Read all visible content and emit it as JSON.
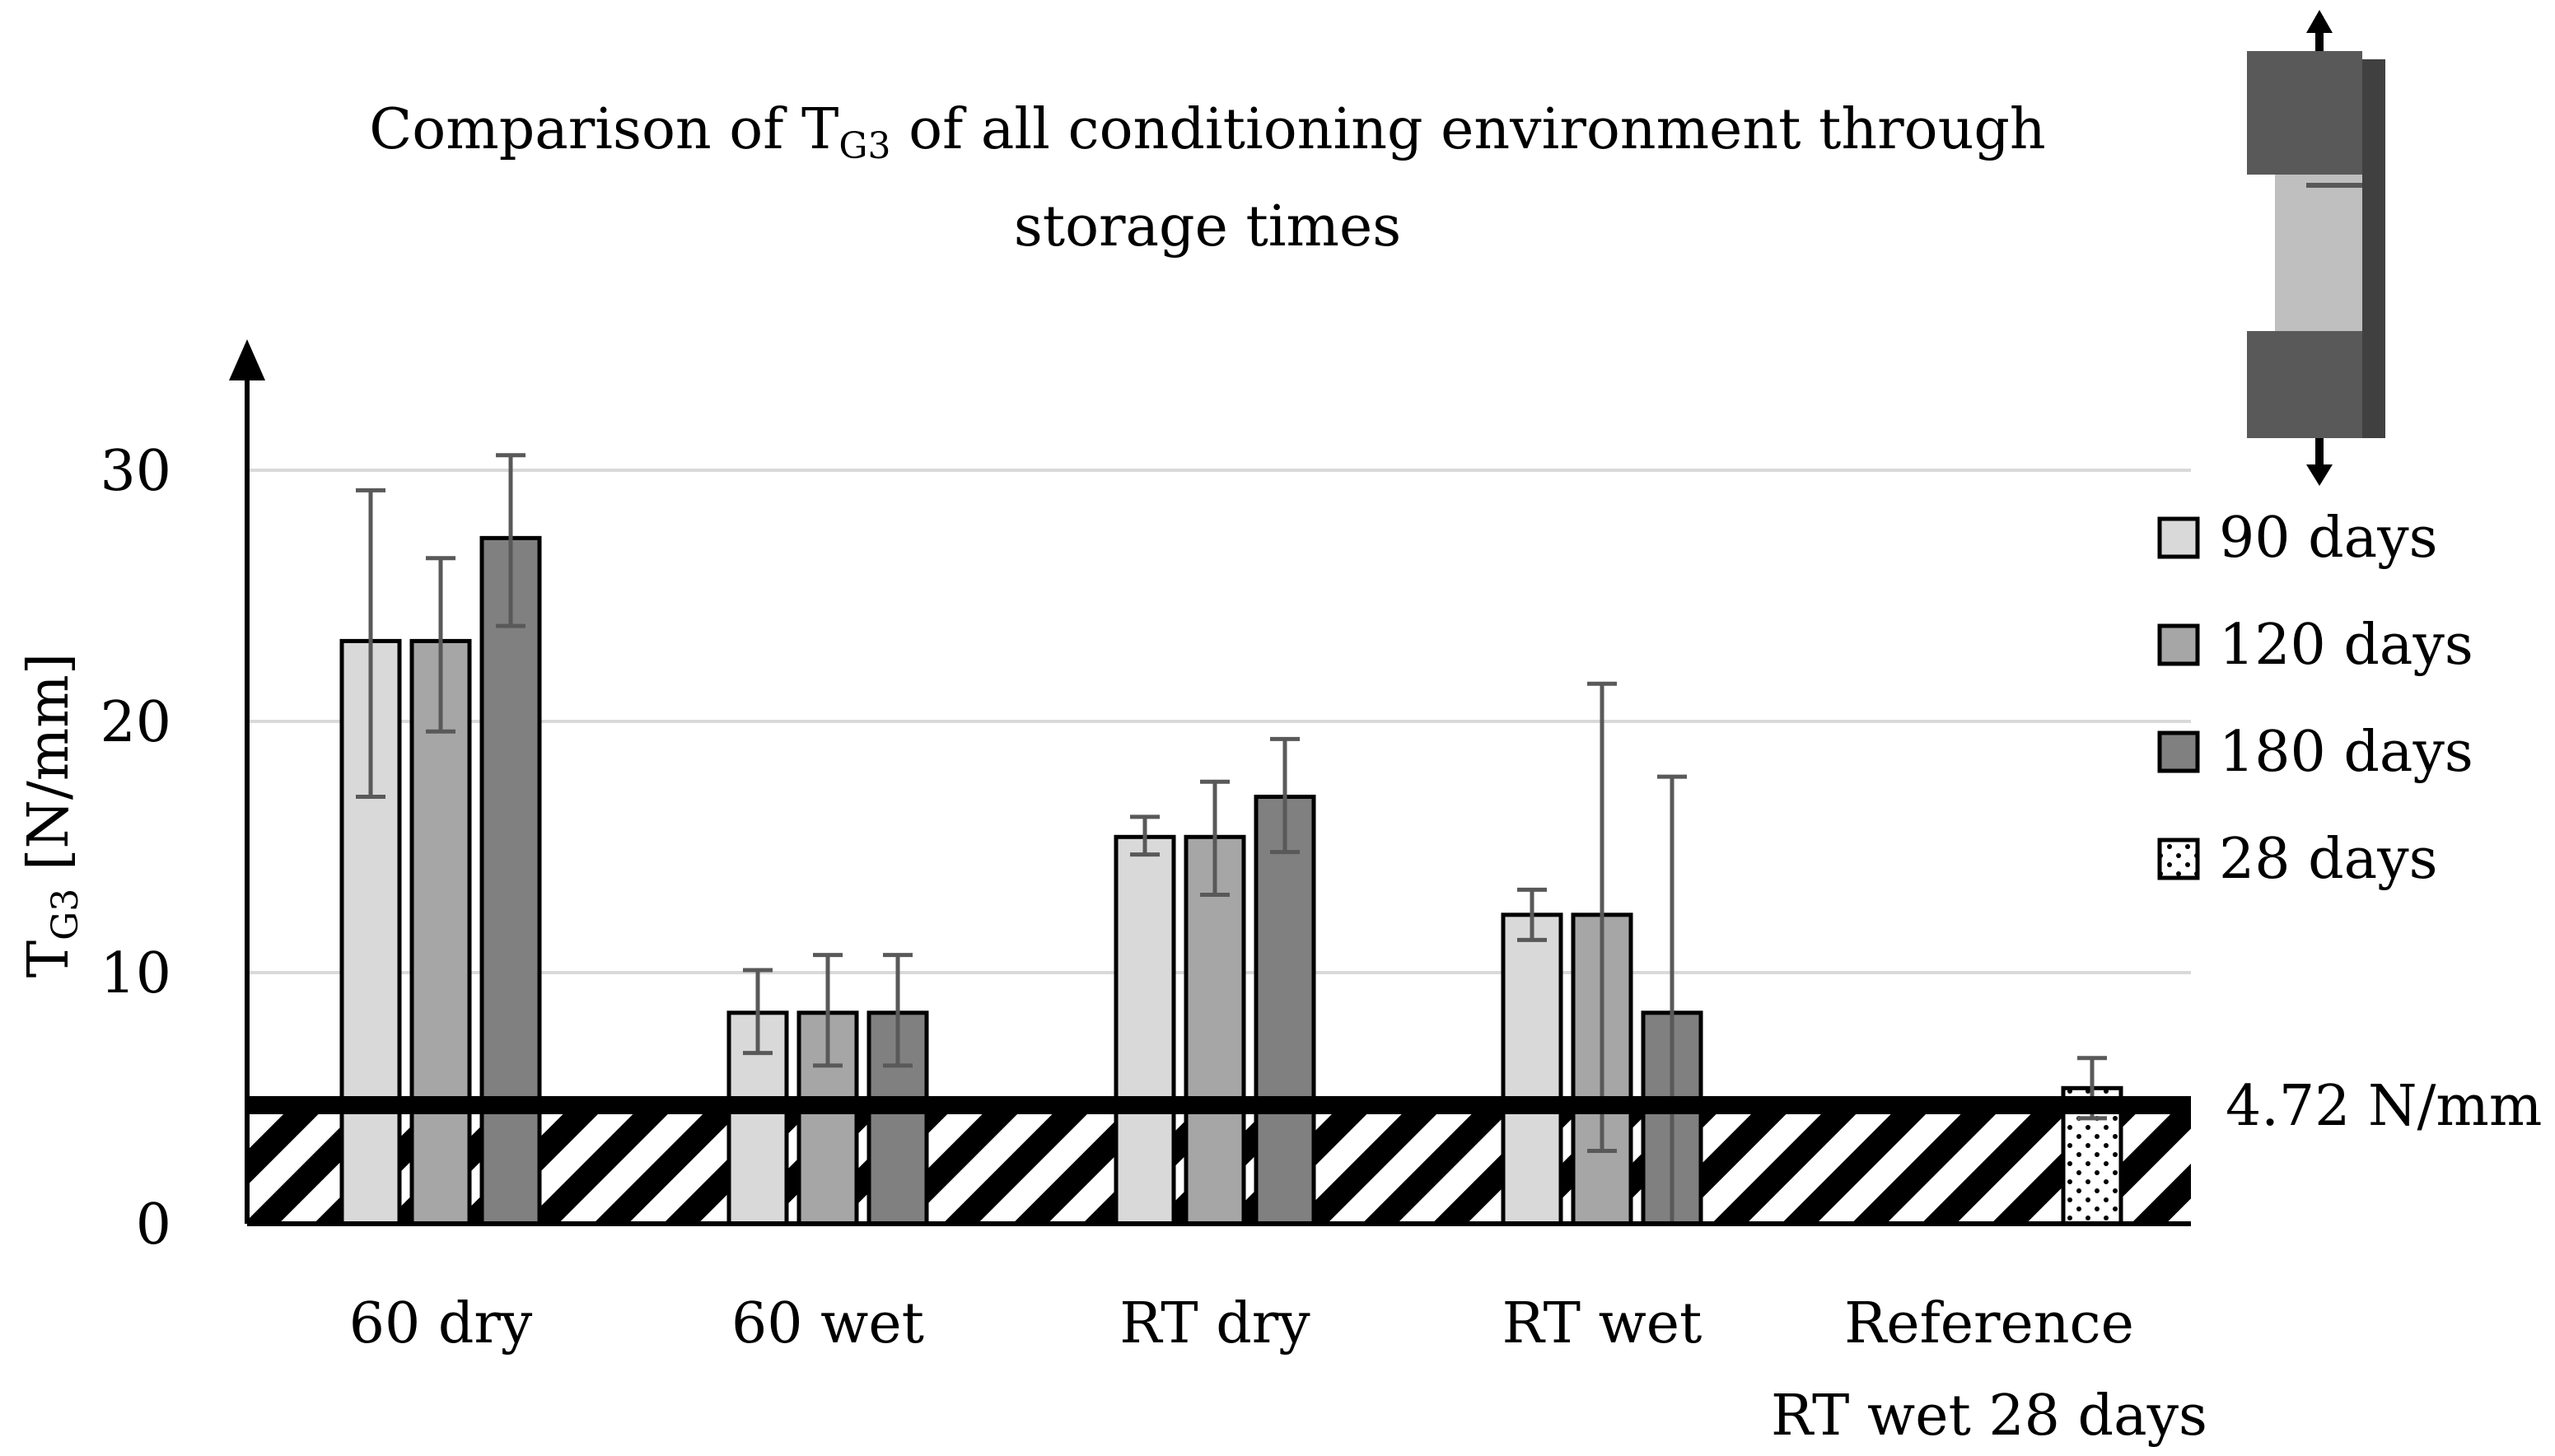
{
  "chart_data": {
    "type": "bar",
    "title_prefix": "Comparison of T",
    "title_subscript": "G3",
    "title_suffix": " of all conditioning environment through",
    "title_line2": "storage times",
    "ylabel_main": "T",
    "ylabel_subscript": "G3",
    "ylabel_unit": " [N/mm]",
    "ylim": [
      0,
      35
    ],
    "yticks": [
      {
        "value": 0,
        "label": "0"
      },
      {
        "value": 10,
        "label": "10"
      },
      {
        "value": 20,
        "label": "20"
      },
      {
        "value": 30,
        "label": "30"
      }
    ],
    "grid": true,
    "categories": [
      {
        "key": "60dry",
        "lines": [
          "60 dry"
        ]
      },
      {
        "key": "60wet",
        "lines": [
          "60 wet"
        ]
      },
      {
        "key": "RTdry",
        "lines": [
          "RT dry"
        ]
      },
      {
        "key": "RTwet",
        "lines": [
          "RT wet"
        ]
      },
      {
        "key": "ref",
        "lines": [
          "Reference",
          "RT wet 28 days"
        ]
      }
    ],
    "series": [
      {
        "name": "90 days",
        "color": "#d9d9d9",
        "pattern": "solid",
        "values": [
          23.2,
          8.4,
          15.4,
          12.3,
          null
        ],
        "err_low": [
          17.0,
          6.8,
          14.7,
          11.3,
          null
        ],
        "err_high": [
          29.2,
          10.1,
          16.2,
          13.3,
          null
        ]
      },
      {
        "name": "120 days",
        "color": "#a6a6a6",
        "pattern": "solid",
        "values": [
          23.2,
          8.4,
          15.4,
          12.3,
          null
        ],
        "err_low": [
          19.6,
          6.3,
          13.1,
          2.9,
          null
        ],
        "err_high": [
          26.5,
          10.7,
          17.6,
          21.5,
          null
        ]
      },
      {
        "name": "180 days",
        "color": "#808080",
        "pattern": "solid",
        "values": [
          27.3,
          8.4,
          17.0,
          8.4,
          null
        ],
        "err_low": [
          23.8,
          6.3,
          14.8,
          0,
          null
        ],
        "err_high": [
          30.6,
          10.7,
          19.3,
          17.8,
          null
        ]
      },
      {
        "name": "28 days",
        "color": "#ffffff",
        "pattern": "dots",
        "values": [
          null,
          null,
          null,
          null,
          5.4
        ],
        "err_low": [
          null,
          null,
          null,
          null,
          4.2
        ],
        "err_high": [
          null,
          null,
          null,
          null,
          6.6
        ]
      }
    ],
    "reference_line": {
      "value": 4.72,
      "label": "4.72 N/mm",
      "band_pattern": "diagonal-hatch"
    },
    "legend_position": "right",
    "specimen_icon": "tensile-specimen-icon"
  }
}
